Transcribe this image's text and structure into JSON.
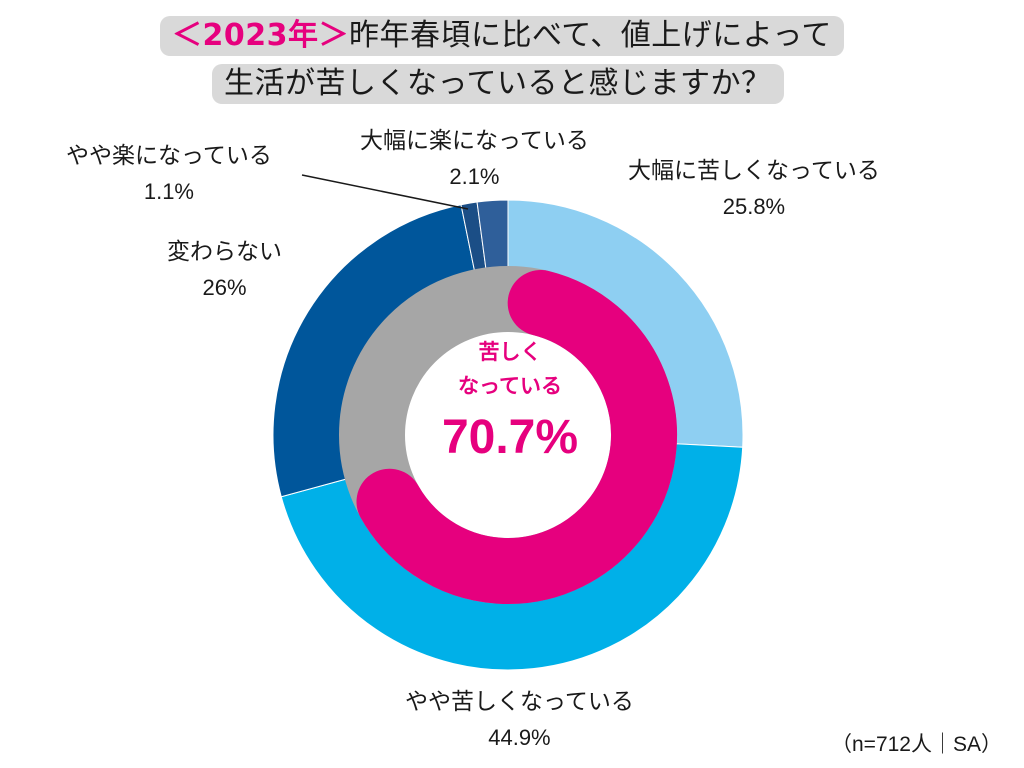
{
  "title": {
    "accent": "＜2023年＞",
    "line1_rest": "昨年春頃に比べて、値上げによって",
    "line2": "生活が苦しくなっていると感じますか？"
  },
  "center": {
    "text_line1": "苦しく",
    "text_line2": "なっている",
    "value": "70.7%"
  },
  "note": "（n=712人｜SA）",
  "chart_data": {
    "type": "pie",
    "style": "donut",
    "series": [
      {
        "values": [
          25.8,
          44.9,
          26,
          1.1,
          2.1
        ],
        "categories": [
          "大幅に苦しくなっている",
          "やや苦しくなっている",
          "変わらない",
          "やや楽になっている",
          "大幅に楽になっている"
        ],
        "value_labels": [
          "25.8%",
          "44.9%",
          "26%",
          "1.1%",
          "2.1%"
        ],
        "colors": [
          "#8ecff2",
          "#00b0e8",
          "#00569b",
          "#1b4e86",
          "#2f5f9a"
        ]
      },
      {
        "values": [
          70.7,
          29.3
        ],
        "categories": [
          "苦しくなっている",
          ""
        ],
        "colors": [
          "#e6007e",
          "#a6a6a6"
        ]
      }
    ],
    "start": "top, clockwise"
  }
}
